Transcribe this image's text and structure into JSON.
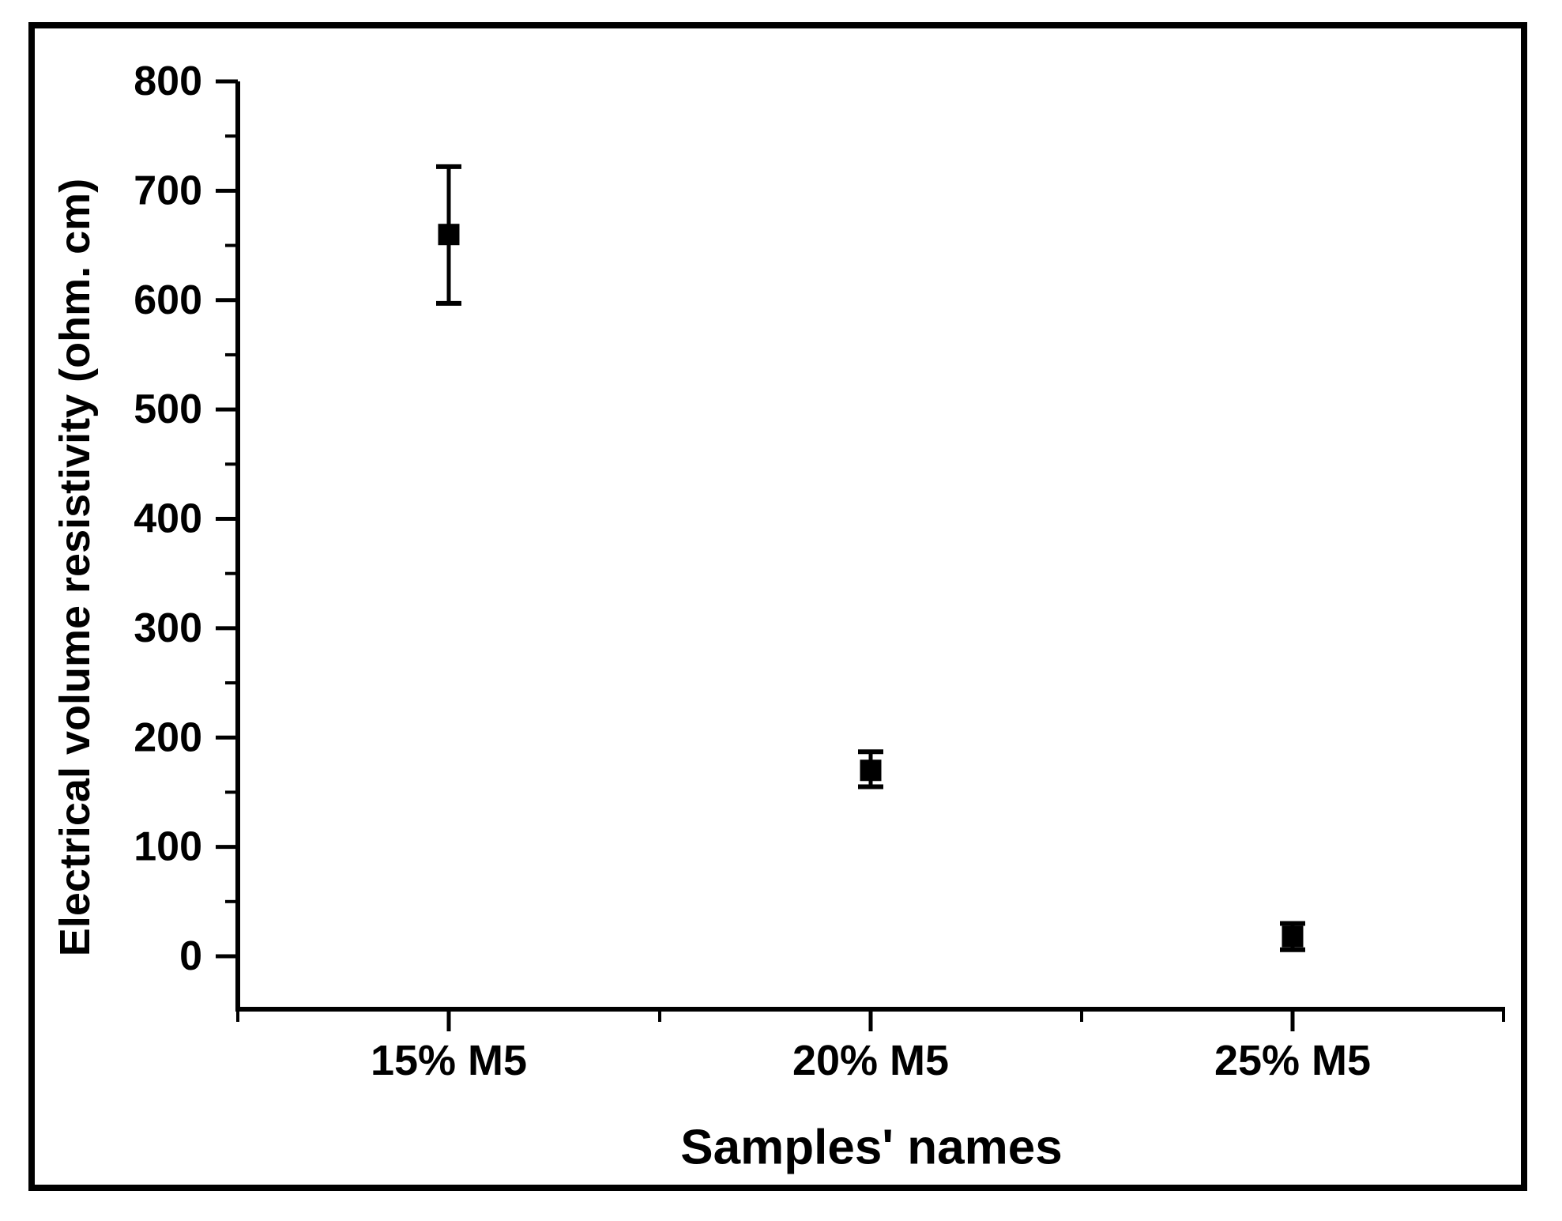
{
  "figure": {
    "background_color": "#ffffff",
    "border_color": "#000000"
  },
  "chart_data": {
    "type": "scatter",
    "title": "",
    "xlabel": "Samples' names",
    "ylabel": "Electrical volume resistivity (ohm. cm)",
    "categories": [
      "15% M5",
      "20% M5",
      "25% M5"
    ],
    "series": [
      {
        "name": "Electrical volume resistivity",
        "marker": "filled-square",
        "color": "#000000",
        "values": [
          660,
          170,
          18
        ],
        "error_plus": [
          62,
          17,
          12
        ],
        "error_minus": [
          63,
          15,
          12
        ]
      }
    ],
    "ylim": [
      -50,
      800
    ],
    "y_major_ticks": [
      800,
      700,
      600,
      500,
      400,
      300,
      200,
      100,
      0
    ],
    "y_minor_tick_step": 50,
    "x_minor_tick_positions": [
      0.5,
      1.5,
      2.5,
      3.5
    ],
    "x_major_tick_positions": [
      1,
      2,
      3
    ],
    "grid": "off",
    "legend": "none",
    "axis_color": "#000000",
    "tick_direction": "out"
  }
}
